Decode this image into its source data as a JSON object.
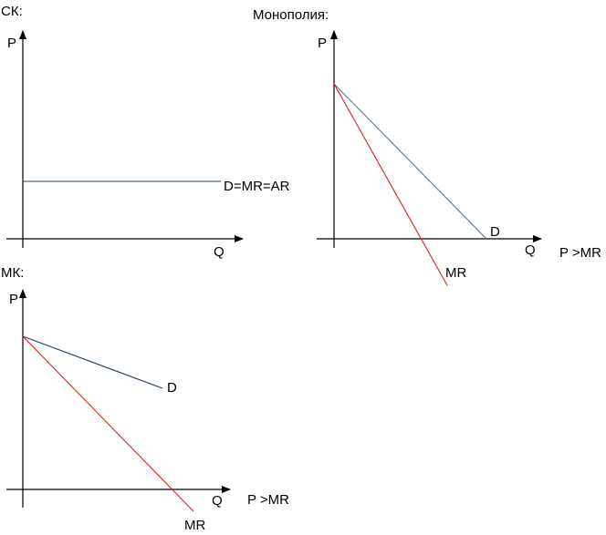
{
  "colors": {
    "axis": "#000000",
    "demand": "#1f3b63",
    "marginal_revenue": "#e01f1f"
  },
  "panels": [
    {
      "id": "sk",
      "title": "СК:",
      "y_axis_label": "P",
      "x_axis_label": "Q",
      "curves": [
        {
          "label": "D=MR=AR",
          "kind": "demand"
        }
      ],
      "note": ""
    },
    {
      "id": "monopoly",
      "title": "Монополия:",
      "y_axis_label": "P",
      "x_axis_label": "Q",
      "curves": [
        {
          "label": "D",
          "kind": "demand"
        },
        {
          "label": "MR",
          "kind": "marginal_revenue"
        }
      ],
      "note": "P >MR"
    },
    {
      "id": "mk",
      "title": "МК:",
      "y_axis_label": "P",
      "x_axis_label": "Q",
      "curves": [
        {
          "label": "D",
          "kind": "demand"
        },
        {
          "label": "MR",
          "kind": "marginal_revenue"
        }
      ],
      "note": "P >MR"
    }
  ]
}
